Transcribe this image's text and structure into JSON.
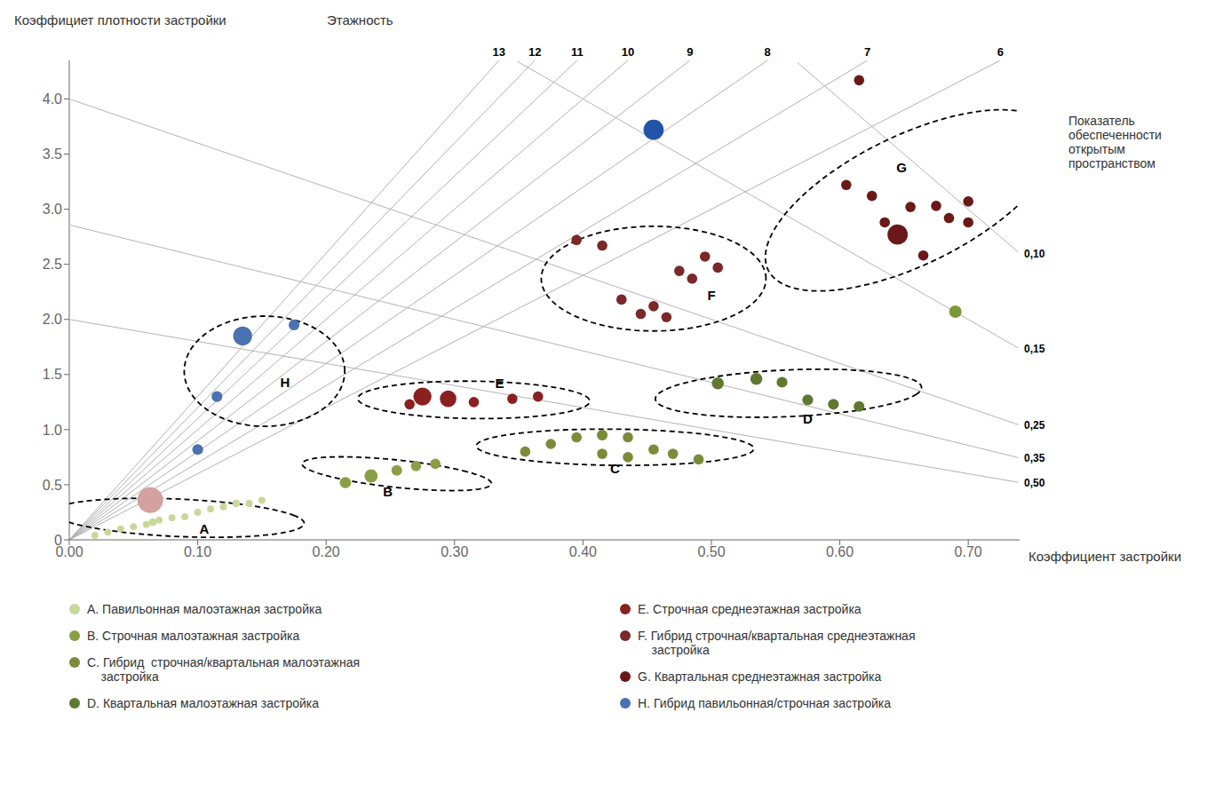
{
  "chart_data": {
    "type": "scatter",
    "x_label": "Коэффициент застройки",
    "y_label": "Коэффициет плотности застройки",
    "annotations": [
      "Этажность",
      "Показатель\nобеспеченности\nоткрытым\nпространством"
    ],
    "xlim": [
      0.0,
      0.74
    ],
    "ylim": [
      0.0,
      4.35
    ],
    "xticks": [
      {
        "value": 0.0,
        "label": "0.00"
      },
      {
        "value": 0.1,
        "label": "0.10"
      },
      {
        "value": 0.2,
        "label": "0.20"
      },
      {
        "value": 0.3,
        "label": "0.30"
      },
      {
        "value": 0.4,
        "label": "0.40"
      },
      {
        "value": 0.5,
        "label": "0.50"
      },
      {
        "value": 0.6,
        "label": "0.60"
      },
      {
        "value": 0.7,
        "label": "0.70"
      }
    ],
    "yticks": [
      0,
      0.5,
      {
        "value": 1.0,
        "label": "1.0"
      },
      1.5,
      {
        "value": 2.0,
        "label": "2.0"
      },
      2.5,
      {
        "value": 3.0,
        "label": "3.0"
      },
      3.5,
      {
        "value": 4.0,
        "label": "4.0"
      }
    ],
    "grid": false,
    "legend": "bottom",
    "floor_lines": [
      13,
      12,
      11,
      10,
      9,
      8,
      7,
      6
    ],
    "open_space_lines": [
      {
        "value": 0.1,
        "label": "0,10"
      },
      {
        "value": 0.15,
        "label": "0,15"
      },
      {
        "value": 0.25,
        "label": "0,25"
      },
      {
        "value": 0.35,
        "label": "0,35"
      },
      {
        "value": 0.5,
        "label": "0,50"
      }
    ],
    "series": [
      {
        "name": "A. Павильонная малоэтажная застройка",
        "label": "A",
        "label_x": 0.105,
        "label_y": 0.1,
        "color": "#c8d89a",
        "x": [
          0.02,
          0.03,
          0.04,
          0.05,
          0.06,
          0.065,
          0.07,
          0.08,
          0.09,
          0.1,
          0.11,
          0.12,
          0.13,
          0.14,
          0.15
        ],
        "y": [
          0.04,
          0.07,
          0.1,
          0.12,
          0.14,
          0.16,
          0.18,
          0.2,
          0.21,
          0.25,
          0.28,
          0.3,
          0.33,
          0.33,
          0.36
        ],
        "sizes": [
          25,
          25,
          25,
          25,
          25,
          30,
          25,
          25,
          25,
          25,
          25,
          25,
          30,
          25,
          25
        ],
        "ellipse": {
          "cx": 0.085,
          "cy": 0.2,
          "width": 0.185,
          "height": 0.36,
          "angle": 12
        }
      },
      {
        "name": "B. Строчная малоэтажная застройка",
        "label": "B",
        "label_x": 0.248,
        "label_y": 0.44,
        "color": "#8a9e45",
        "x": [
          0.215,
          0.235,
          0.255,
          0.27,
          0.285
        ],
        "y": [
          0.52,
          0.58,
          0.63,
          0.67,
          0.69
        ],
        "sizes": [
          65,
          90,
          60,
          55,
          55
        ],
        "ellipse": {
          "cx": 0.255,
          "cy": 0.6,
          "width": 0.115,
          "height": 0.32,
          "angle": 18
        }
      },
      {
        "name": "C. Гибрид  строчная/квартальная малоэтажная\n    застройка",
        "label": "C",
        "label_x": 0.425,
        "label_y": 0.65,
        "color": "#7a8c3a",
        "x": [
          0.355,
          0.375,
          0.395,
          0.415,
          0.435,
          0.415,
          0.435,
          0.455,
          0.47,
          0.49
        ],
        "y": [
          0.8,
          0.87,
          0.93,
          0.95,
          0.93,
          0.78,
          0.75,
          0.82,
          0.78,
          0.73
        ],
        "sizes": [
          55,
          55,
          55,
          60,
          55,
          55,
          55,
          55,
          55,
          55
        ],
        "ellipse": {
          "cx": 0.425,
          "cy": 0.84,
          "width": 0.215,
          "height": 0.33,
          "angle": 5
        }
      },
      {
        "name": "D. Квартальная малоэтажная застройка",
        "label": "D",
        "label_x": 0.575,
        "label_y": 1.1,
        "color": "#607830",
        "x": [
          0.505,
          0.535,
          0.555,
          0.575,
          0.595,
          0.615
        ],
        "y": [
          1.42,
          1.46,
          1.43,
          1.27,
          1.23,
          1.21
        ],
        "sizes": [
          75,
          75,
          60,
          60,
          60,
          60
        ],
        "ellipse": {
          "cx": 0.56,
          "cy": 1.33,
          "width": 0.2,
          "height": 0.44,
          "angle": -8
        }
      },
      {
        "name": "E. Строчная среднеэтажная застройка",
        "label": "E",
        "label_x": 0.335,
        "label_y": 1.42,
        "color": "#8b2020",
        "x": [
          0.265,
          0.275,
          0.295,
          0.315,
          0.345,
          0.365
        ],
        "y": [
          1.23,
          1.3,
          1.28,
          1.25,
          1.28,
          1.3
        ],
        "sizes": [
          55,
          170,
          140,
          55,
          55,
          55
        ],
        "ellipse": {
          "cx": 0.315,
          "cy": 1.27,
          "width": 0.18,
          "height": 0.34,
          "angle": 3
        }
      },
      {
        "name": "F. Гибрид строчная/квартальная среднеэтажная\n    застройка",
        "label": "F",
        "label_x": 0.5,
        "label_y": 2.22,
        "color": "#7a2828",
        "x": [
          0.395,
          0.415,
          0.43,
          0.445,
          0.455,
          0.465,
          0.485,
          0.475,
          0.495,
          0.505
        ],
        "y": [
          2.72,
          2.67,
          2.18,
          2.05,
          2.12,
          2.02,
          2.37,
          2.44,
          2.57,
          2.47
        ],
        "sizes": [
          55,
          55,
          55,
          55,
          55,
          55,
          55,
          55,
          55,
          55
        ],
        "ellipse": {
          "cx": 0.455,
          "cy": 2.37,
          "width": 0.175,
          "height": 0.95,
          "angle": 0
        }
      },
      {
        "name": "G. Квартальная среднеэтажная застройка",
        "label": "G",
        "label_x": 0.648,
        "label_y": 3.38,
        "color": "#6b1818",
        "x": [
          0.615,
          0.605,
          0.625,
          0.635,
          0.645,
          0.655,
          0.665,
          0.675,
          0.685,
          0.7,
          0.7
        ],
        "y": [
          4.17,
          3.22,
          3.12,
          2.88,
          2.77,
          3.02,
          2.58,
          3.03,
          2.92,
          2.88,
          3.07
        ],
        "sizes": [
          55,
          55,
          55,
          55,
          210,
          55,
          55,
          55,
          55,
          55,
          55
        ],
        "ellipse": {
          "cx": 0.655,
          "cy": 3.08,
          "width": 0.175,
          "height": 1.65,
          "angle": -5
        }
      },
      {
        "name": "H. Гибрид павильонная/строчная застройка",
        "label": "H",
        "label_x": 0.168,
        "label_y": 1.43,
        "color": "#4a72b0",
        "x": [
          0.135,
          0.175,
          0.1,
          0.115
        ],
        "y": [
          1.85,
          1.95,
          0.82,
          1.3
        ],
        "sizes": [
          185,
          60,
          60,
          60
        ],
        "ellipse": {
          "cx": 0.152,
          "cy": 1.53,
          "width": 0.125,
          "height": 1.0,
          "angle": 0
        }
      },
      {
        "color": "#2255aa",
        "x": [
          0.455
        ],
        "y": [
          3.72
        ],
        "sizes": [
          210
        ]
      },
      {
        "color": "#d4a0a0",
        "x": [
          0.063
        ],
        "y": [
          0.36
        ],
        "sizes": [
          340
        ]
      },
      {
        "color": "#7a9a3a",
        "x": [
          0.69
        ],
        "y": [
          2.07
        ],
        "sizes": [
          80
        ]
      }
    ]
  }
}
